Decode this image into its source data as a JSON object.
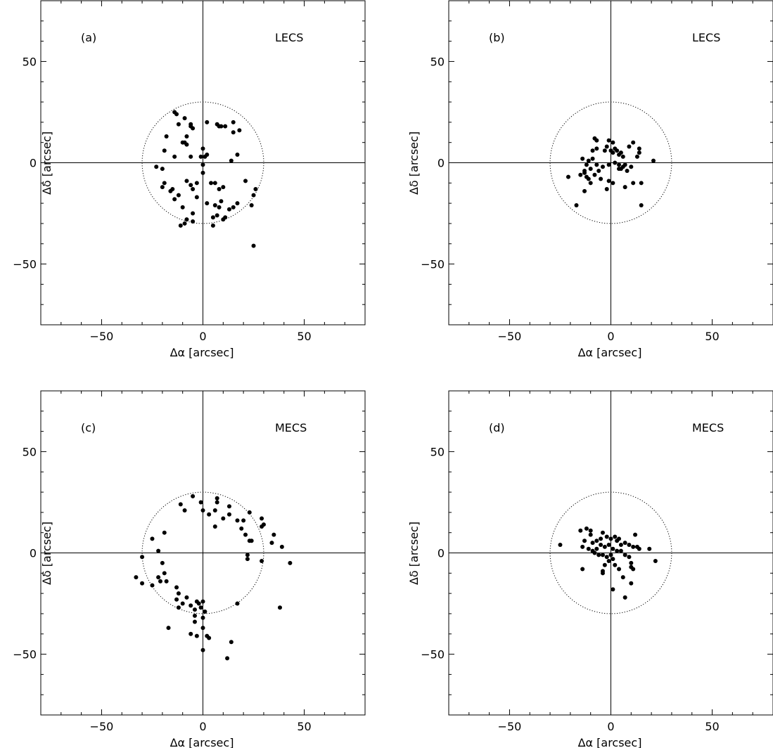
{
  "figure": {
    "x_axis_title": "Δα [arcsec]",
    "y_axis_title": "Δδ [arcsec]"
  },
  "chart_data": [
    {
      "type": "scatter",
      "panel_label": "(a)",
      "instrument": "LECS",
      "xlabel": "Δα [arcsec]",
      "ylabel": "Δδ [arcsec]",
      "xlim": [
        -80,
        80
      ],
      "ylim": [
        -80,
        80
      ],
      "x_ticks": [
        -50,
        0,
        50
      ],
      "y_ticks": [
        50,
        0,
        -50
      ],
      "circle_radius": 30,
      "points": [
        [
          -14,
          25
        ],
        [
          -13,
          24
        ],
        [
          -12,
          19
        ],
        [
          -9,
          22
        ],
        [
          -6,
          19
        ],
        [
          -5,
          17
        ],
        [
          -6,
          18
        ],
        [
          -8,
          13
        ],
        [
          -9,
          10
        ],
        [
          -8,
          9
        ],
        [
          -10,
          10
        ],
        [
          -18,
          13
        ],
        [
          -19,
          6
        ],
        [
          -14,
          3
        ],
        [
          -6,
          3
        ],
        [
          -1,
          3
        ],
        [
          1,
          3
        ],
        [
          2,
          4
        ],
        [
          0,
          7
        ],
        [
          2,
          20
        ],
        [
          7,
          19
        ],
        [
          8,
          18
        ],
        [
          9,
          18
        ],
        [
          11,
          18
        ],
        [
          15,
          15
        ],
        [
          18,
          16
        ],
        [
          15,
          20
        ],
        [
          17,
          4
        ],
        [
          14,
          1
        ],
        [
          -23,
          -2
        ],
        [
          -20,
          -3
        ],
        [
          -19,
          -10
        ],
        [
          -20,
          -12
        ],
        [
          -15,
          -13
        ],
        [
          -16,
          -14
        ],
        [
          -14,
          -18
        ],
        [
          -12,
          -16
        ],
        [
          -10,
          -22
        ],
        [
          -8,
          -9
        ],
        [
          -6,
          -11
        ],
        [
          -5,
          -13
        ],
        [
          -3,
          -10
        ],
        [
          -3,
          -17
        ],
        [
          0,
          -1
        ],
        [
          0,
          -5
        ],
        [
          2,
          -20
        ],
        [
          4,
          -10
        ],
        [
          6,
          -10
        ],
        [
          8,
          -13
        ],
        [
          10,
          -12
        ],
        [
          9,
          -19
        ],
        [
          6,
          -21
        ],
        [
          8,
          -22
        ],
        [
          11,
          -27
        ],
        [
          13,
          -23
        ],
        [
          15,
          -22
        ],
        [
          17,
          -20
        ],
        [
          21,
          -9
        ],
        [
          25,
          -16
        ],
        [
          26,
          -13
        ],
        [
          24,
          -21
        ],
        [
          7,
          -26
        ],
        [
          5,
          -27
        ],
        [
          -5,
          -25
        ],
        [
          -8,
          -28
        ],
        [
          -5,
          -29
        ],
        [
          -11,
          -31
        ],
        [
          -9,
          -30
        ],
        [
          5,
          -31
        ],
        [
          10,
          -28
        ],
        [
          25,
          -41
        ]
      ]
    },
    {
      "type": "scatter",
      "panel_label": "(b)",
      "instrument": "LECS",
      "xlabel": "Δα [arcsec]",
      "ylabel": "Δδ [arcsec]",
      "xlim": [
        -80,
        80
      ],
      "ylim": [
        -80,
        80
      ],
      "x_ticks": [
        -50,
        0,
        50
      ],
      "y_ticks": [
        50,
        0,
        -50
      ],
      "circle_radius": 30,
      "points": [
        [
          -8,
          12
        ],
        [
          -7,
          11
        ],
        [
          -1,
          11
        ],
        [
          1,
          10
        ],
        [
          -2,
          8
        ],
        [
          -7,
          7
        ],
        [
          -9,
          6
        ],
        [
          -3,
          6
        ],
        [
          0,
          6
        ],
        [
          1,
          5
        ],
        [
          2,
          7
        ],
        [
          3,
          6
        ],
        [
          4,
          4
        ],
        [
          5,
          5
        ],
        [
          6,
          3
        ],
        [
          9,
          8
        ],
        [
          11,
          10
        ],
        [
          14,
          7
        ],
        [
          14,
          5
        ],
        [
          13,
          3
        ],
        [
          21,
          1
        ],
        [
          -14,
          2
        ],
        [
          -11,
          1
        ],
        [
          -9,
          2
        ],
        [
          -12,
          -1
        ],
        [
          -13,
          -4
        ],
        [
          -10,
          -3
        ],
        [
          -7,
          -1
        ],
        [
          -6,
          -4
        ],
        [
          -4,
          -2
        ],
        [
          -1,
          -1
        ],
        [
          2,
          0
        ],
        [
          4,
          -1
        ],
        [
          5,
          -3
        ],
        [
          6,
          -2
        ],
        [
          7,
          -1
        ],
        [
          8,
          -4
        ],
        [
          10,
          -2
        ],
        [
          -21,
          -7
        ],
        [
          -15,
          -6
        ],
        [
          -13,
          -5
        ],
        [
          -12,
          -7
        ],
        [
          -11,
          -8
        ],
        [
          -10,
          -10
        ],
        [
          -8,
          -6
        ],
        [
          -5,
          -8
        ],
        [
          -1,
          -9
        ],
        [
          1,
          -10
        ],
        [
          4,
          -3
        ],
        [
          7,
          -12
        ],
        [
          11,
          -10
        ],
        [
          15,
          -10
        ],
        [
          -17,
          -21
        ],
        [
          -13,
          -14
        ],
        [
          -2,
          -13
        ],
        [
          15,
          -21
        ]
      ]
    },
    {
      "type": "scatter",
      "panel_label": "(c)",
      "instrument": "MECS",
      "xlabel": "Δα [arcsec]",
      "ylabel": "Δδ [arcsec]",
      "xlim": [
        -80,
        80
      ],
      "ylim": [
        -80,
        80
      ],
      "x_ticks": [
        -50,
        0,
        50
      ],
      "y_ticks": [
        50,
        0,
        -50
      ],
      "circle_radius": 30,
      "points": [
        [
          -5,
          28
        ],
        [
          -1,
          25
        ],
        [
          0,
          21
        ],
        [
          3,
          19
        ],
        [
          7,
          27
        ],
        [
          7,
          25
        ],
        [
          6,
          21
        ],
        [
          13,
          23
        ],
        [
          13,
          19
        ],
        [
          10,
          17
        ],
        [
          6,
          13
        ],
        [
          -11,
          24
        ],
        [
          -9,
          21
        ],
        [
          17,
          16
        ],
        [
          20,
          16
        ],
        [
          23,
          20
        ],
        [
          19,
          12
        ],
        [
          21,
          9
        ],
        [
          23,
          6
        ],
        [
          24,
          6
        ],
        [
          29,
          17
        ],
        [
          30,
          14
        ],
        [
          29,
          13
        ],
        [
          35,
          9
        ],
        [
          34,
          5
        ],
        [
          39,
          3
        ],
        [
          -19,
          10
        ],
        [
          -25,
          7
        ],
        [
          -22,
          1
        ],
        [
          29,
          -4
        ],
        [
          22,
          -1
        ],
        [
          22,
          -3
        ],
        [
          -30,
          -2
        ],
        [
          -33,
          -12
        ],
        [
          -30,
          -15
        ],
        [
          -25,
          -16
        ],
        [
          -22,
          -12
        ],
        [
          -21,
          -14
        ],
        [
          -20,
          -5
        ],
        [
          -19,
          -10
        ],
        [
          -18,
          -14
        ],
        [
          -13,
          -17
        ],
        [
          -12,
          -20
        ],
        [
          -13,
          -23
        ],
        [
          -10,
          -25
        ],
        [
          -12,
          -27
        ],
        [
          -8,
          -22
        ],
        [
          -6,
          -26
        ],
        [
          -3,
          -24
        ],
        [
          -2,
          -25
        ],
        [
          -1,
          -27
        ],
        [
          -4,
          -28
        ],
        [
          -4,
          -31
        ],
        [
          0,
          -24
        ],
        [
          1,
          -29
        ],
        [
          0,
          -32
        ],
        [
          -4,
          -34
        ],
        [
          -6,
          -40
        ],
        [
          -3,
          -41
        ],
        [
          2,
          -41
        ],
        [
          3,
          -42
        ],
        [
          0,
          -37
        ],
        [
          0,
          -48
        ],
        [
          -17,
          -37
        ],
        [
          14,
          -44
        ],
        [
          12,
          -52
        ],
        [
          38,
          -27
        ],
        [
          43,
          -5
        ],
        [
          17,
          -25
        ]
      ]
    },
    {
      "type": "scatter",
      "panel_label": "(d)",
      "instrument": "MECS",
      "xlabel": "Δα [arcsec]",
      "ylabel": "Δδ [arcsec]",
      "xlim": [
        -80,
        80
      ],
      "ylim": [
        -80,
        80
      ],
      "x_ticks": [
        -50,
        0,
        50
      ],
      "y_ticks": [
        50,
        0,
        -50
      ],
      "circle_radius": 30,
      "points": [
        [
          -15,
          11
        ],
        [
          -12,
          12
        ],
        [
          -10,
          11
        ],
        [
          -10,
          9
        ],
        [
          -13,
          6
        ],
        [
          -9,
          5
        ],
        [
          -7,
          6
        ],
        [
          -5,
          7
        ],
        [
          -4,
          10
        ],
        [
          -2,
          8
        ],
        [
          0,
          7
        ],
        [
          2,
          8
        ],
        [
          3,
          6
        ],
        [
          4,
          7
        ],
        [
          5,
          4
        ],
        [
          7,
          5
        ],
        [
          9,
          4
        ],
        [
          12,
          9
        ],
        [
          11,
          3
        ],
        [
          13,
          3
        ],
        [
          -25,
          4
        ],
        [
          -14,
          3
        ],
        [
          -11,
          2
        ],
        [
          -9,
          1
        ],
        [
          -7,
          2
        ],
        [
          -5,
          4
        ],
        [
          -3,
          3
        ],
        [
          -1,
          4
        ],
        [
          1,
          2
        ],
        [
          3,
          1
        ],
        [
          5,
          1
        ],
        [
          7,
          -1
        ],
        [
          9,
          -2
        ],
        [
          14,
          2
        ],
        [
          19,
          2
        ],
        [
          22,
          -4
        ],
        [
          -8,
          0
        ],
        [
          -6,
          -1
        ],
        [
          -4,
          -1
        ],
        [
          -2,
          -2
        ],
        [
          0,
          -1
        ],
        [
          -3,
          -6
        ],
        [
          -1,
          -4
        ],
        [
          1,
          -3
        ],
        [
          2,
          -6
        ],
        [
          4,
          -8
        ],
        [
          6,
          -12
        ],
        [
          10,
          -5
        ],
        [
          10,
          -7
        ],
        [
          11,
          -8
        ],
        [
          -14,
          -8
        ],
        [
          -4,
          -9
        ],
        [
          -4,
          -10
        ],
        [
          1,
          -18
        ],
        [
          7,
          -22
        ],
        [
          10,
          -15
        ]
      ]
    }
  ]
}
